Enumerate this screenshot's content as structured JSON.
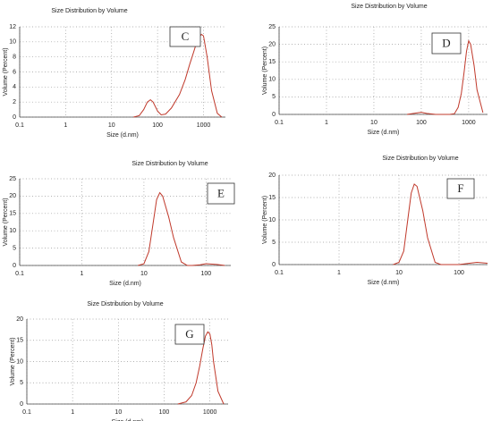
{
  "chart_data": [
    {
      "type": "line",
      "title": "Size Distribution by Volume",
      "x_label": "Size (d.nm)",
      "y_label": "Volume (Percent)",
      "label": "C",
      "log_x": true,
      "grid": true,
      "xlim": [
        0.1,
        3000
      ],
      "xticks": [
        0.1,
        1,
        10,
        100,
        1000
      ],
      "ylim": [
        0,
        12
      ],
      "yticks": [
        0,
        2,
        4,
        6,
        8,
        10,
        12
      ],
      "series": [
        {
          "color": "#c0392b",
          "x": [
            30,
            40,
            50,
            60,
            70,
            80,
            100,
            120,
            150,
            200,
            300,
            400,
            500,
            600,
            700,
            800,
            900,
            1000,
            1200,
            1500,
            2000,
            2500
          ],
          "values": [
            0,
            0.2,
            1,
            2,
            2.3,
            2,
            0.8,
            0.3,
            0.4,
            1.2,
            3,
            5,
            7,
            8.5,
            9.8,
            10.6,
            11,
            10.8,
            8,
            3.5,
            0.5,
            0
          ]
        }
      ]
    },
    {
      "type": "line",
      "title": "Size Distribution by Volume",
      "x_label": "Size (d.nm)",
      "y_label": "Volume (Percent)",
      "label": "D",
      "log_x": true,
      "grid": true,
      "xlim": [
        0.1,
        2500
      ],
      "xticks": [
        0.1,
        1,
        10,
        100,
        1000
      ],
      "ylim": [
        0,
        25
      ],
      "yticks": [
        0,
        5,
        10,
        15,
        20,
        25
      ],
      "series": [
        {
          "color": "#c0392b",
          "x": [
            50,
            80,
            100,
            130,
            200,
            400,
            500,
            600,
            700,
            800,
            900,
            1000,
            1100,
            1300,
            1500,
            2000
          ],
          "values": [
            0,
            0.4,
            0.6,
            0.3,
            0,
            0,
            0.2,
            2,
            6,
            12,
            18,
            21,
            20,
            14,
            7,
            0.5
          ]
        }
      ]
    },
    {
      "type": "line",
      "title": "Size Distribution by Volume",
      "x_label": "Size (d.nm)",
      "y_label": "Volume (Percent)",
      "label": "E",
      "log_x": true,
      "grid": true,
      "xlim": [
        0.1,
        250
      ],
      "xticks": [
        0.1,
        1,
        10,
        100
      ],
      "ylim": [
        0,
        25
      ],
      "yticks": [
        0,
        5,
        10,
        15,
        20,
        25
      ],
      "series": [
        {
          "color": "#c0392b",
          "x": [
            8,
            10,
            12,
            14,
            16,
            18,
            20,
            25,
            30,
            40,
            50,
            60,
            80,
            100,
            150,
            200
          ],
          "values": [
            0,
            0.5,
            4,
            12,
            19,
            21,
            20,
            14,
            8,
            1,
            0,
            0,
            0.2,
            0.5,
            0.3,
            0
          ]
        }
      ]
    },
    {
      "type": "line",
      "title": "Size Distribution by Volume",
      "x_label": "Size (d.nm)",
      "y_label": "Volume (Percent)",
      "label": "F",
      "log_x": true,
      "grid": true,
      "xlim": [
        0.1,
        300
      ],
      "xticks": [
        0.1,
        1,
        10,
        100
      ],
      "ylim": [
        0,
        20
      ],
      "yticks": [
        0,
        5,
        10,
        15,
        20
      ],
      "series": [
        {
          "color": "#c0392b",
          "x": [
            8,
            10,
            12,
            14,
            16,
            18,
            20,
            25,
            30,
            40,
            50,
            100,
            150,
            200,
            300
          ],
          "values": [
            0,
            0.5,
            3,
            10,
            16,
            18,
            17.5,
            12,
            6,
            0.5,
            0,
            0,
            0.3,
            0.5,
            0.3
          ]
        }
      ]
    },
    {
      "type": "line",
      "title": "Size Distribution by Volume",
      "x_label": "Size (d.nm)",
      "y_label": "Volume (Percent)",
      "label": "G",
      "log_x": true,
      "grid": true,
      "xlim": [
        0.1,
        2500
      ],
      "xticks": [
        0.1,
        1,
        10,
        100,
        1000
      ],
      "ylim": [
        0,
        20
      ],
      "yticks": [
        0,
        5,
        10,
        15,
        20
      ],
      "series": [
        {
          "color": "#c0392b",
          "x": [
            200,
            300,
            400,
            500,
            600,
            700,
            800,
            900,
            1000,
            1100,
            1200,
            1500,
            2000
          ],
          "values": [
            0,
            0.5,
            2,
            5,
            9,
            13,
            16,
            17,
            16.5,
            14,
            10,
            3,
            0
          ]
        }
      ]
    }
  ]
}
